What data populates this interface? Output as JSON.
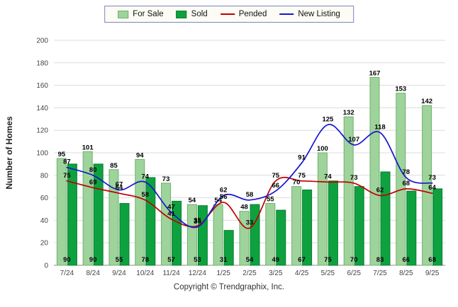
{
  "footer": {
    "copyright": "Copyright © Trendgraphix, Inc."
  },
  "chart_data": {
    "type": "bar",
    "title": "",
    "categories": [
      "7/24",
      "8/24",
      "9/24",
      "10/24",
      "11/24",
      "12/24",
      "1/25",
      "2/25",
      "3/25",
      "4/25",
      "5/25",
      "6/25",
      "7/25",
      "8/25",
      "9/25"
    ],
    "series": [
      {
        "name": "For Sale",
        "type": "bar",
        "fill": "#9ED49B",
        "stroke": "#6FAF6C",
        "label_position": "top",
        "values": [
          95,
          101,
          85,
          94,
          73,
          54,
          54,
          48,
          55,
          70,
          100,
          132,
          167,
          153,
          142
        ]
      },
      {
        "name": "Sold",
        "type": "bar",
        "fill": "#0DA23F",
        "stroke": "#0A7C30",
        "label_position": "bottom",
        "values": [
          90,
          90,
          55,
          78,
          57,
          53,
          31,
          54,
          49,
          67,
          75,
          70,
          83,
          66,
          68
        ]
      },
      {
        "name": "Pended",
        "type": "line",
        "color": "#BE0000",
        "values": [
          75,
          69,
          64,
          58,
          41,
          35,
          56,
          33,
          75,
          75,
          74,
          73,
          62,
          68,
          64
        ]
      },
      {
        "name": "New Listing",
        "type": "line",
        "color": "#1616CF",
        "values": [
          87,
          80,
          67,
          74,
          47,
          34,
          62,
          58,
          66,
          91,
          125,
          107,
          118,
          78,
          73
        ]
      }
    ],
    "xlabel": "",
    "ylabel": "Number of Homes",
    "ylim": [
      0,
      200
    ],
    "ytick_step": 20,
    "grid": true,
    "legend_position": "top"
  }
}
